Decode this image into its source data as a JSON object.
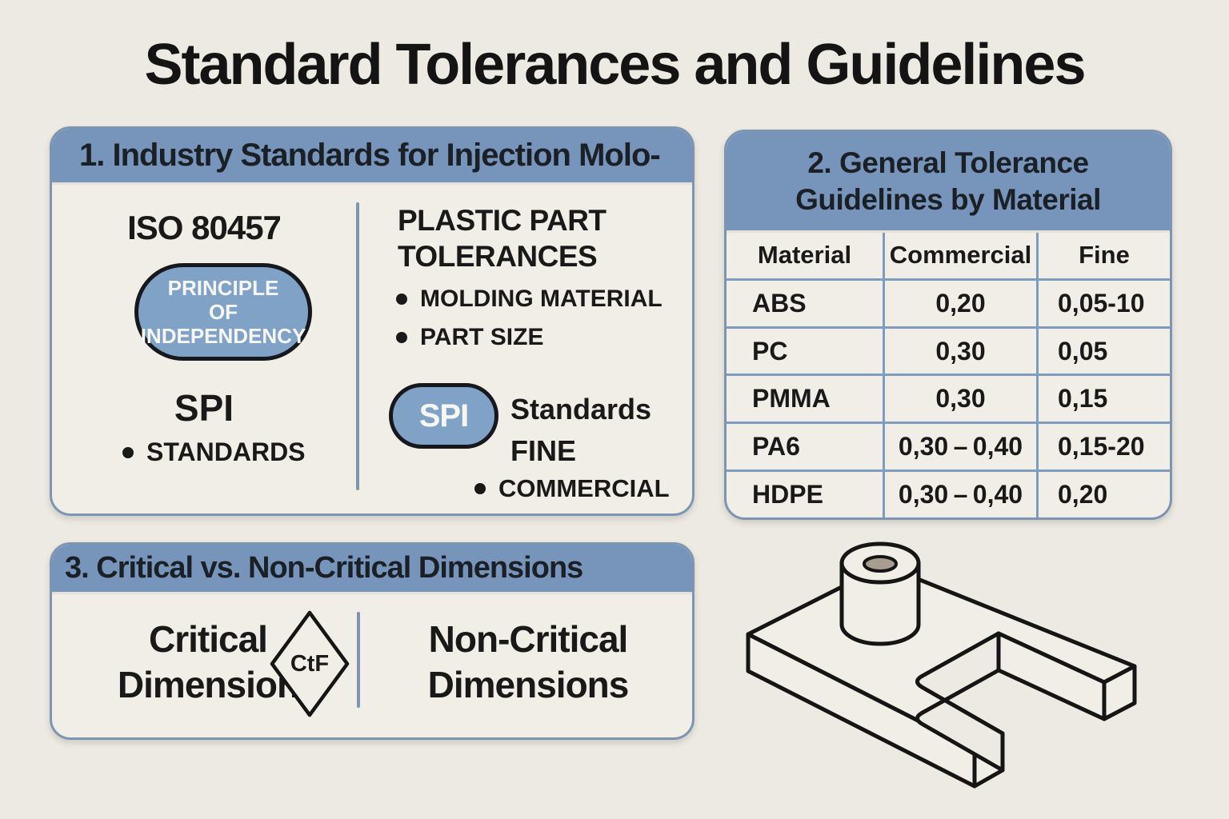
{
  "title": "Standard Tolerances and Guidelines",
  "colors": {
    "bg": "#eceae2",
    "panel": "#f1eee7",
    "blue": "#7795bb",
    "pill": "#7fa2c6",
    "steel": "#7d95b0",
    "grid": "#7e9dbd",
    "ink": "#191919",
    "white": "#f6f7f5",
    "hole": "#a89e90"
  },
  "panel1": {
    "header": "1. Industry Standards for Injection Molo-",
    "left": {
      "heading": "ISO 80457",
      "pill_lines": [
        "PRINCIPLE",
        "OF",
        "INDEPENDENCY"
      ],
      "subheading": "SPI",
      "bullet": "STANDARDS"
    },
    "right": {
      "heading_line1": "PLASTIC PART",
      "heading_line2": "TOLERANCES",
      "bullets": [
        "MOLDING MATERIAL",
        "PART SIZE"
      ],
      "pill": "SPI",
      "pill_caption": "Standards",
      "fine_label": "FINE",
      "bullet2": "COMMERCIAL"
    }
  },
  "panel2": {
    "header_line1": "2. General Tolerance",
    "header_line2": "Guidelines by Material",
    "table": {
      "columns": [
        "Material",
        "Commercial",
        "Fine"
      ],
      "rows": [
        [
          "ABS",
          "0,20",
          "0,05-10"
        ],
        [
          "PC",
          "0,30",
          "0,05"
        ],
        [
          "PMMA",
          "0,30",
          "0,15"
        ],
        [
          "PA6",
          "0,30 – 0,40",
          "0,15-20"
        ],
        [
          "HDPE",
          "0,30 – 0,40",
          "0,20"
        ]
      ]
    }
  },
  "panel3": {
    "header": "3. Critical vs. Non-Critical Dimensions",
    "left_line1": "Critical",
    "left_line2": "Dimension",
    "diamond_label": "CtF",
    "right_line1": "Non-Critical",
    "right_line2": "Dimensions"
  },
  "drawing": {
    "description": "isometric plastic part with cylindrical boss and L-shaped notch"
  }
}
